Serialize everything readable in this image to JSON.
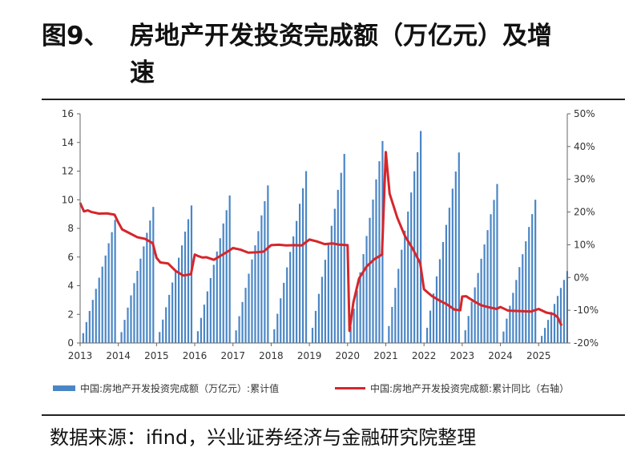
{
  "figure": {
    "number": "图9、",
    "title_line1": "房地产开发投资完成额（万亿元）及增",
    "title_line2": "速",
    "source": "数据来源：ifind，兴业证券经济与金融研究院整理"
  },
  "chart_data": {
    "type": "bar+line",
    "left_axis": {
      "min": 0,
      "max": 16,
      "ticks": [
        "0",
        "2",
        "4",
        "6",
        "8",
        "10",
        "12",
        "14",
        "16"
      ]
    },
    "right_axis": {
      "min": -20,
      "max": 50,
      "ticks": [
        "-20%",
        "-10%",
        "0%",
        "10%",
        "20%",
        "30%",
        "40%",
        "50%"
      ]
    },
    "x_axis": {
      "start_year": 2013,
      "end_year": 2025,
      "tick_labels": [
        "2013",
        "2014",
        "2015",
        "2016",
        "2017",
        "2018",
        "2019",
        "2020",
        "2021",
        "2022",
        "2023",
        "2024",
        "2025"
      ]
    },
    "grid": false,
    "legend_position": "bottom",
    "colors": {
      "bars": "#4a86c5",
      "line": "#d6262b"
    },
    "series": [
      {
        "name": "中国:房地产开发投资完成额（万亿元）:累计值",
        "axis": "left",
        "kind": "bar",
        "annual_dec_totals": {
          "2013": 8.6,
          "2014": 9.5,
          "2015": 9.6,
          "2016": 10.3,
          "2017": 11.0,
          "2018": 12.0,
          "2019": 13.2,
          "2020": 14.1,
          "2021": 14.8,
          "2022": 13.3,
          "2023": 11.1,
          "2024": 10.0,
          "2025": 6.2
        },
        "monthly_share": [
          0.08,
          0.17,
          0.26,
          0.35,
          0.44,
          0.53,
          0.62,
          0.71,
          0.81,
          0.9,
          1.0
        ]
      },
      {
        "name": "中国:房地产开发投资完成额:累计同比（右轴）",
        "axis": "right",
        "kind": "line",
        "x": [
          2013.0,
          2013.1,
          2013.2,
          2013.3,
          2013.5,
          2013.7,
          2013.9,
          2014.0,
          2014.1,
          2014.3,
          2014.5,
          2014.7,
          2014.9,
          2015.0,
          2015.1,
          2015.3,
          2015.5,
          2015.7,
          2015.9,
          2016.0,
          2016.1,
          2016.2,
          2016.3,
          2016.5,
          2016.7,
          2016.9,
          2017.0,
          2017.2,
          2017.4,
          2017.6,
          2017.8,
          2018.0,
          2018.2,
          2018.4,
          2018.6,
          2018.8,
          2019.0,
          2019.2,
          2019.4,
          2019.6,
          2019.8,
          2020.0,
          2020.05,
          2020.15,
          2020.3,
          2020.5,
          2020.7,
          2020.9,
          2021.0,
          2021.1,
          2021.3,
          2021.5,
          2021.7,
          2021.9,
          2022.0,
          2022.2,
          2022.4,
          2022.6,
          2022.8,
          2022.95,
          2023.0,
          2023.1,
          2023.3,
          2023.5,
          2023.7,
          2023.9,
          2024.0,
          2024.2,
          2024.4,
          2024.6,
          2024.8,
          2025.0,
          2025.2,
          2025.4,
          2025.5,
          2025.6
        ],
        "values": [
          22.8,
          20.2,
          20.5,
          20.0,
          19.5,
          19.6,
          19.2,
          16.8,
          14.7,
          13.5,
          12.3,
          11.8,
          10.5,
          6.0,
          4.6,
          4.3,
          2.0,
          0.6,
          1.0,
          7.0,
          6.5,
          6.1,
          6.2,
          5.4,
          6.8,
          8.2,
          9.0,
          8.5,
          7.6,
          7.7,
          7.9,
          9.9,
          10.0,
          9.8,
          9.9,
          9.8,
          11.6,
          11.0,
          10.2,
          10.4,
          10.0,
          9.9,
          -16.3,
          -7.7,
          -0.3,
          3.4,
          5.6,
          7.0,
          38.3,
          25.6,
          18.3,
          12.7,
          8.9,
          4.4,
          -3.6,
          -5.6,
          -7.0,
          -8.2,
          -9.8,
          -10.0,
          -5.8,
          -5.7,
          -7.2,
          -8.5,
          -9.1,
          -9.6,
          -9.0,
          -10.1,
          -10.2,
          -10.3,
          -10.4,
          -9.6,
          -10.7,
          -11.2,
          -12.2,
          -14.7
        ]
      }
    ]
  },
  "legend": {
    "bar_label": "中国:房地产开发投资完成额（万亿元）:累计值",
    "line_label": "中国:房地产开发投资完成额:累计同比（右轴）"
  }
}
